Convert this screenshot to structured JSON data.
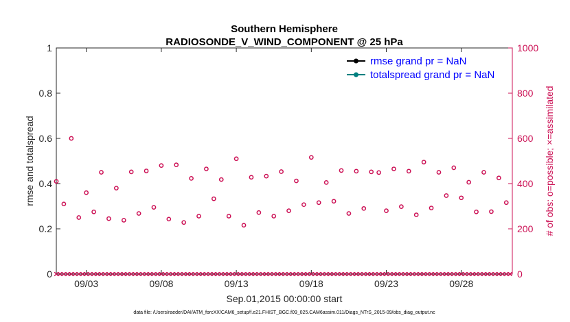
{
  "chart_data": {
    "type": "scatter",
    "title_line1": "Southern Hemisphere",
    "title_line2": "RADIOSONDE_V_WIND_COMPONENT @ 25 hPa",
    "xlabel": "Sep.01,2015 00:00:00 start",
    "ylabel_left": "rmse and totalspread",
    "ylabel_right": "# of obs: o=possible; ×=assimilated",
    "footnote": "data file: /Users/raeder/DAI/ATM_forcXX/CAM6_setup/f.e21.FHIST_BGC.f09_025.CAM6assim.011/Diags_NTrS_2015-09/obs_diag_output.nc",
    "x_range_days": [
      1,
      31.4
    ],
    "ylim_left": [
      0,
      1
    ],
    "ylim_right": [
      0,
      1000
    ],
    "xticks": [
      {
        "day": 3,
        "label": "09/03"
      },
      {
        "day": 8,
        "label": "09/08"
      },
      {
        "day": 13,
        "label": "09/13"
      },
      {
        "day": 18,
        "label": "09/18"
      },
      {
        "day": 23,
        "label": "09/23"
      },
      {
        "day": 28,
        "label": "09/28"
      }
    ],
    "yticks_left": [
      "0",
      "0.2",
      "0.4",
      "0.6",
      "0.8",
      "1"
    ],
    "yticks_right": [
      "0",
      "200",
      "400",
      "600",
      "800",
      "1000"
    ],
    "legend": [
      {
        "name": "rmse grand pr = NaN",
        "color": "#000000"
      },
      {
        "name": "totalspread grand pr = NaN",
        "color": "#008080"
      }
    ],
    "obs_possible": {
      "color": "#cc1155",
      "x": [
        1.0,
        1.5,
        2.0,
        2.5,
        3.0,
        3.5,
        4.0,
        4.5,
        5.0,
        5.5,
        6.0,
        6.5,
        7.0,
        7.5,
        8.0,
        8.5,
        9.0,
        9.5,
        10.0,
        10.5,
        11.0,
        11.5,
        12.0,
        12.5,
        13.0,
        13.5,
        14.0,
        14.5,
        15.0,
        15.5,
        16.0,
        16.5,
        17.0,
        17.5,
        18.0,
        18.5,
        19.0,
        19.5,
        20.0,
        20.5,
        21.0,
        21.5,
        22.0,
        22.5,
        23.0,
        23.5,
        24.0,
        24.5,
        25.0,
        25.5,
        26.0,
        26.5,
        27.0,
        27.5,
        28.0,
        28.5,
        29.0,
        29.5,
        30.0,
        30.5,
        31.0
      ],
      "values": [
        410,
        310,
        600,
        250,
        360,
        275,
        450,
        245,
        380,
        238,
        452,
        268,
        456,
        295,
        480,
        243,
        483,
        228,
        423,
        256,
        465,
        333,
        418,
        256,
        510,
        216,
        428,
        272,
        433,
        256,
        453,
        280,
        412,
        307,
        516,
        316,
        405,
        322,
        458,
        268,
        455,
        290,
        452,
        449,
        280,
        465,
        298,
        455,
        262,
        495,
        292,
        450,
        347,
        470,
        337,
        406,
        275,
        450,
        276,
        425,
        316
      ]
    },
    "obs_assimilated": {
      "color": "#cc1155",
      "x_start": 1.0,
      "x_step": 0.25,
      "count": 122,
      "value": 0
    },
    "rmse": {
      "color": "#000000",
      "values": "NaN"
    },
    "totalspread": {
      "color": "#008080",
      "values": "NaN"
    }
  }
}
